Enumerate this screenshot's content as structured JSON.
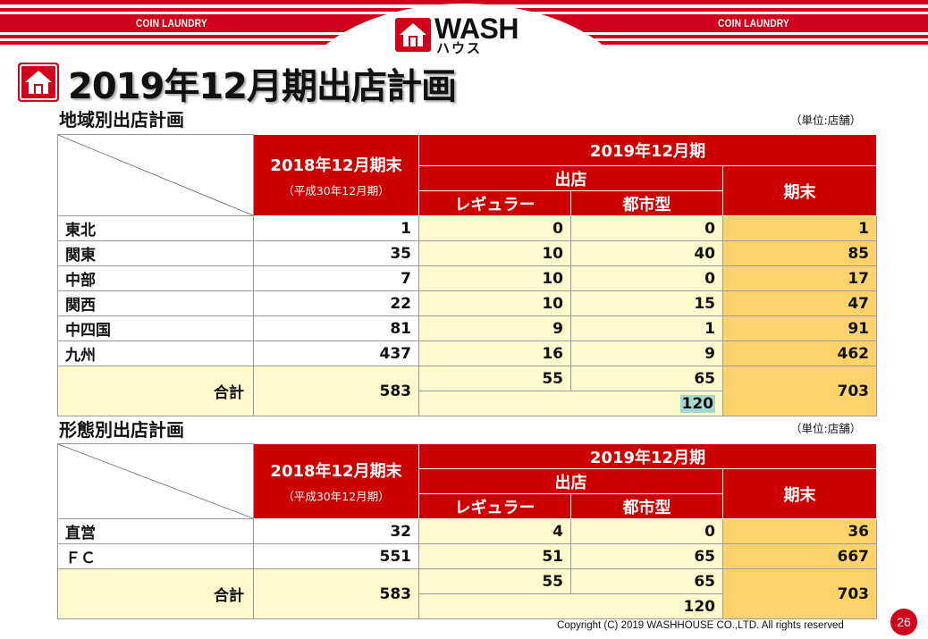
{
  "header": {
    "coin_left": "COIN LAUNDRY",
    "coin_right": "COIN LAUNDRY",
    "logo_wash": "WASH",
    "logo_kana": "ハウス"
  },
  "page_title": "2019年12月期出店計画",
  "region_section": {
    "title": "地域別出店計画",
    "unit": "（単位:店舗）",
    "head": {
      "prev": "2018年12月期末",
      "prev_sub": "（平成30年12月期）",
      "period": "2019年12月期",
      "opening": "出店",
      "regular": "レギュラー",
      "urban": "都市型",
      "end": "期末"
    },
    "rows": [
      {
        "name": "東北",
        "prev": "1",
        "regular": "0",
        "urban": "0",
        "end": "1"
      },
      {
        "name": "関東",
        "prev": "35",
        "regular": "10",
        "urban": "40",
        "end": "85"
      },
      {
        "name": "中部",
        "prev": "7",
        "regular": "10",
        "urban": "0",
        "end": "17"
      },
      {
        "name": "関西",
        "prev": "22",
        "regular": "10",
        "urban": "15",
        "end": "47"
      },
      {
        "name": "中四国",
        "prev": "81",
        "regular": "9",
        "urban": "1",
        "end": "91"
      },
      {
        "name": "九州",
        "prev": "437",
        "regular": "16",
        "urban": "9",
        "end": "462"
      }
    ],
    "total": {
      "label": "合計",
      "prev": "583",
      "regular": "55",
      "urban": "65",
      "opening_sum": "120",
      "end": "703"
    }
  },
  "type_section": {
    "title": "形態別出店計画",
    "unit": "（単位:店舗）",
    "head": {
      "prev": "2018年12月期末",
      "prev_sub": "（平成30年12月期）",
      "period": "2019年12月期",
      "opening": "出店",
      "regular": "レギュラー",
      "urban": "都市型",
      "end": "期末"
    },
    "rows": [
      {
        "name": "直営",
        "prev": "32",
        "regular": "4",
        "urban": "0",
        "end": "36"
      },
      {
        "name": "ＦＣ",
        "prev": "551",
        "regular": "51",
        "urban": "65",
        "end": "667"
      }
    ],
    "total": {
      "label": "合計",
      "prev": "583",
      "regular": "55",
      "urban": "65",
      "opening_sum": "120",
      "end": "703"
    }
  },
  "footer": {
    "copyright": "Copyright (C) 2019 WASHHOUSE CO.,LTD. All rights reserved",
    "page_number": "26"
  },
  "colors": {
    "brand_red": "#cc0000",
    "light_yellow": "#fffacd",
    "orange_yellow": "#ffd36b",
    "highlight": "#a7d8d0"
  }
}
